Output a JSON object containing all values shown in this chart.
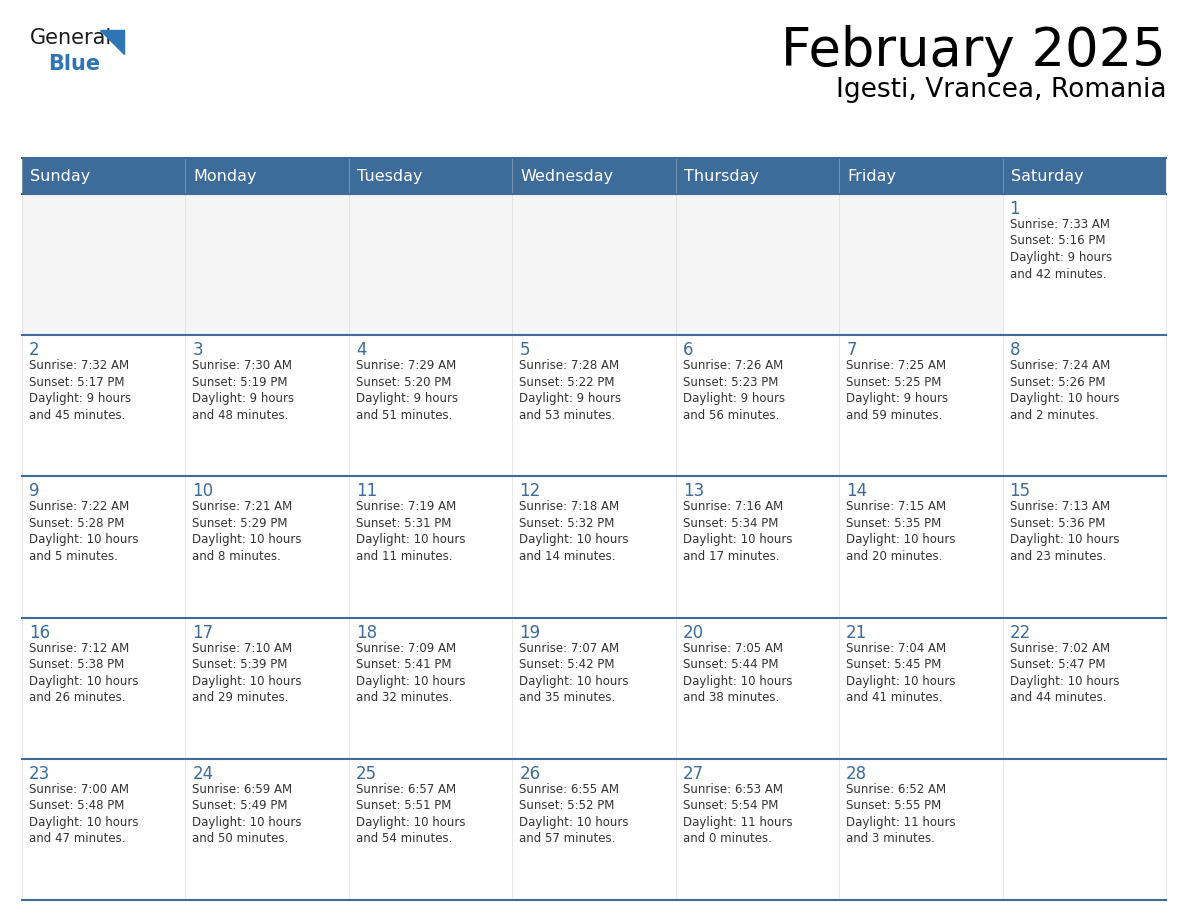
{
  "title": "February 2025",
  "subtitle": "Igesti, Vrancea, Romania",
  "header_bg": "#3D6B9A",
  "header_text_color": "#FFFFFF",
  "border_color": "#3D6B9A",
  "row_separator_color": "#3D6B9A",
  "day_number_color": "#3D6B9A",
  "text_color": "#333333",
  "cell_bg": "#FFFFFF",
  "empty_cell_bg": "#F2F2F2",
  "days_of_week": [
    "Sunday",
    "Monday",
    "Tuesday",
    "Wednesday",
    "Thursday",
    "Friday",
    "Saturday"
  ],
  "weeks": [
    [
      {
        "day": null,
        "info": null
      },
      {
        "day": null,
        "info": null
      },
      {
        "day": null,
        "info": null
      },
      {
        "day": null,
        "info": null
      },
      {
        "day": null,
        "info": null
      },
      {
        "day": null,
        "info": null
      },
      {
        "day": 1,
        "info": "Sunrise: 7:33 AM\nSunset: 5:16 PM\nDaylight: 9 hours\nand 42 minutes."
      }
    ],
    [
      {
        "day": 2,
        "info": "Sunrise: 7:32 AM\nSunset: 5:17 PM\nDaylight: 9 hours\nand 45 minutes."
      },
      {
        "day": 3,
        "info": "Sunrise: 7:30 AM\nSunset: 5:19 PM\nDaylight: 9 hours\nand 48 minutes."
      },
      {
        "day": 4,
        "info": "Sunrise: 7:29 AM\nSunset: 5:20 PM\nDaylight: 9 hours\nand 51 minutes."
      },
      {
        "day": 5,
        "info": "Sunrise: 7:28 AM\nSunset: 5:22 PM\nDaylight: 9 hours\nand 53 minutes."
      },
      {
        "day": 6,
        "info": "Sunrise: 7:26 AM\nSunset: 5:23 PM\nDaylight: 9 hours\nand 56 minutes."
      },
      {
        "day": 7,
        "info": "Sunrise: 7:25 AM\nSunset: 5:25 PM\nDaylight: 9 hours\nand 59 minutes."
      },
      {
        "day": 8,
        "info": "Sunrise: 7:24 AM\nSunset: 5:26 PM\nDaylight: 10 hours\nand 2 minutes."
      }
    ],
    [
      {
        "day": 9,
        "info": "Sunrise: 7:22 AM\nSunset: 5:28 PM\nDaylight: 10 hours\nand 5 minutes."
      },
      {
        "day": 10,
        "info": "Sunrise: 7:21 AM\nSunset: 5:29 PM\nDaylight: 10 hours\nand 8 minutes."
      },
      {
        "day": 11,
        "info": "Sunrise: 7:19 AM\nSunset: 5:31 PM\nDaylight: 10 hours\nand 11 minutes."
      },
      {
        "day": 12,
        "info": "Sunrise: 7:18 AM\nSunset: 5:32 PM\nDaylight: 10 hours\nand 14 minutes."
      },
      {
        "day": 13,
        "info": "Sunrise: 7:16 AM\nSunset: 5:34 PM\nDaylight: 10 hours\nand 17 minutes."
      },
      {
        "day": 14,
        "info": "Sunrise: 7:15 AM\nSunset: 5:35 PM\nDaylight: 10 hours\nand 20 minutes."
      },
      {
        "day": 15,
        "info": "Sunrise: 7:13 AM\nSunset: 5:36 PM\nDaylight: 10 hours\nand 23 minutes."
      }
    ],
    [
      {
        "day": 16,
        "info": "Sunrise: 7:12 AM\nSunset: 5:38 PM\nDaylight: 10 hours\nand 26 minutes."
      },
      {
        "day": 17,
        "info": "Sunrise: 7:10 AM\nSunset: 5:39 PM\nDaylight: 10 hours\nand 29 minutes."
      },
      {
        "day": 18,
        "info": "Sunrise: 7:09 AM\nSunset: 5:41 PM\nDaylight: 10 hours\nand 32 minutes."
      },
      {
        "day": 19,
        "info": "Sunrise: 7:07 AM\nSunset: 5:42 PM\nDaylight: 10 hours\nand 35 minutes."
      },
      {
        "day": 20,
        "info": "Sunrise: 7:05 AM\nSunset: 5:44 PM\nDaylight: 10 hours\nand 38 minutes."
      },
      {
        "day": 21,
        "info": "Sunrise: 7:04 AM\nSunset: 5:45 PM\nDaylight: 10 hours\nand 41 minutes."
      },
      {
        "day": 22,
        "info": "Sunrise: 7:02 AM\nSunset: 5:47 PM\nDaylight: 10 hours\nand 44 minutes."
      }
    ],
    [
      {
        "day": 23,
        "info": "Sunrise: 7:00 AM\nSunset: 5:48 PM\nDaylight: 10 hours\nand 47 minutes."
      },
      {
        "day": 24,
        "info": "Sunrise: 6:59 AM\nSunset: 5:49 PM\nDaylight: 10 hours\nand 50 minutes."
      },
      {
        "day": 25,
        "info": "Sunrise: 6:57 AM\nSunset: 5:51 PM\nDaylight: 10 hours\nand 54 minutes."
      },
      {
        "day": 26,
        "info": "Sunrise: 6:55 AM\nSunset: 5:52 PM\nDaylight: 10 hours\nand 57 minutes."
      },
      {
        "day": 27,
        "info": "Sunrise: 6:53 AM\nSunset: 5:54 PM\nDaylight: 11 hours\nand 0 minutes."
      },
      {
        "day": 28,
        "info": "Sunrise: 6:52 AM\nSunset: 5:55 PM\nDaylight: 11 hours\nand 3 minutes."
      },
      {
        "day": null,
        "info": null
      }
    ]
  ],
  "logo_general_color": "#1a1a1a",
  "logo_blue_color": "#2E75B6",
  "title_fontsize": 38,
  "subtitle_fontsize": 19,
  "header_fontsize": 11.5,
  "day_num_fontsize": 12,
  "cell_text_fontsize": 8.5
}
